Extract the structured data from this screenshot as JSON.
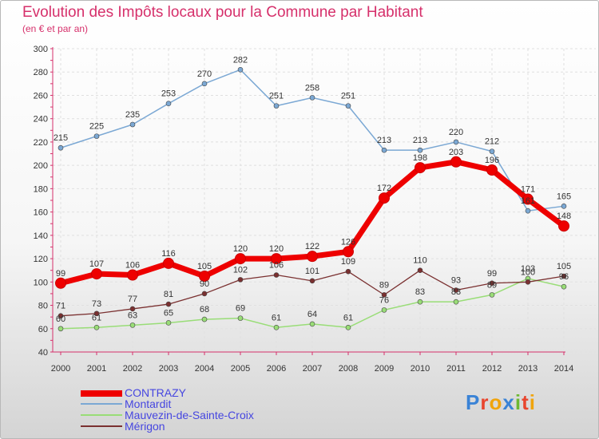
{
  "title": "Evolution des Impôts locaux pour la Commune par Habitant",
  "subtitle": "(en € et par an)",
  "logo": {
    "text": "Proxiti",
    "colors": [
      "#3a83d6",
      "#e8452e",
      "#f0a40c",
      "#3a83d6",
      "#6cb831",
      "#e8452e",
      "#f0a40c"
    ]
  },
  "chart_data": {
    "type": "line",
    "title": "Evolution des Impôts locaux pour la Commune par Habitant",
    "subtitle": "(en € et par an)",
    "x": [
      2000,
      2001,
      2002,
      2003,
      2004,
      2005,
      2006,
      2007,
      2008,
      2009,
      2010,
      2011,
      2012,
      2013,
      2014
    ],
    "ylim": [
      40,
      300
    ],
    "yticks": [
      40,
      60,
      80,
      100,
      120,
      140,
      160,
      180,
      200,
      220,
      240,
      260,
      280,
      300
    ],
    "grid": true,
    "legend_position": "bottom-left",
    "series": [
      {
        "name": "CONTRAZY",
        "color": "#ee0000",
        "values": [
          99,
          107,
          106,
          116,
          105,
          120,
          120,
          122,
          126,
          172,
          198,
          203,
          196,
          171,
          148
        ],
        "labels": [
          "99",
          "107",
          "106",
          "116",
          "105",
          "120",
          "120",
          "122",
          "126",
          "172",
          "198",
          "203",
          "196",
          "171",
          "148"
        ]
      },
      {
        "name": "Montardit",
        "color": "#7ba8d4",
        "values": [
          215,
          225,
          235,
          253,
          270,
          282,
          251,
          258,
          251,
          213,
          213,
          220,
          212,
          161,
          165
        ],
        "labels": [
          "215",
          "225",
          "235",
          "253",
          "270",
          "282",
          "251",
          "258",
          "251",
          "213",
          "213",
          "220",
          "212",
          "161",
          "165"
        ]
      },
      {
        "name": "Mauvezin-de-Sainte-Croix",
        "color": "#99dd77",
        "values": [
          60,
          61,
          63,
          65,
          68,
          69,
          61,
          64,
          61,
          76,
          83,
          83,
          89,
          103,
          96
        ],
        "labels": [
          "60",
          "61",
          "63",
          "65",
          "68",
          "69",
          "61",
          "64",
          "61",
          "76",
          "83",
          "83",
          "89",
          "103",
          "96"
        ]
      },
      {
        "name": "Mérigon",
        "color": "#7a3030",
        "values": [
          71,
          73,
          77,
          81,
          90,
          102,
          106,
          101,
          109,
          89,
          110,
          93,
          99,
          100,
          105
        ],
        "labels": [
          "71",
          "73",
          "77",
          "81",
          "90",
          "102",
          "106",
          "101",
          "109",
          "89",
          "110",
          "93",
          "99",
          "100",
          "105"
        ]
      }
    ]
  }
}
